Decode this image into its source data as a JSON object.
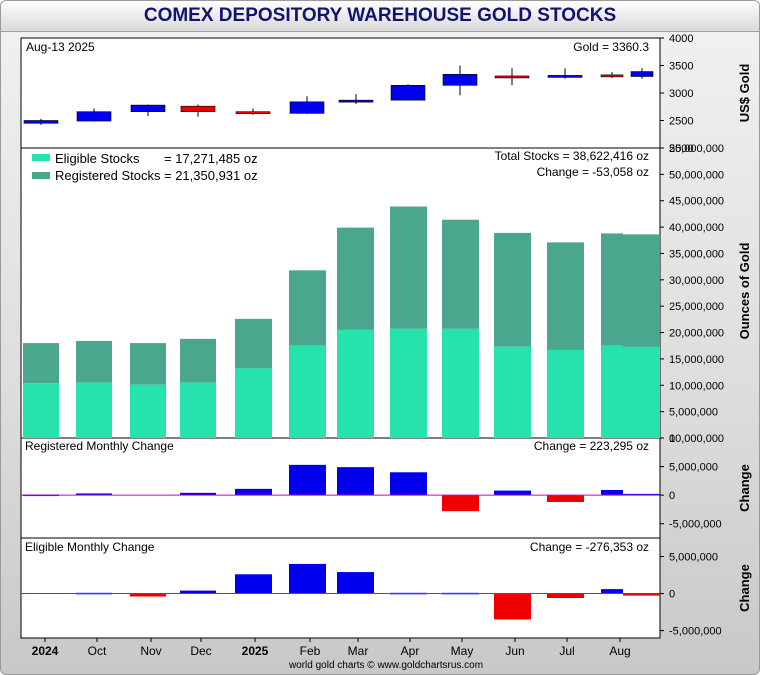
{
  "title": "COMEX DEPOSITORY WAREHOUSE GOLD STOCKS",
  "footer": "world gold charts © www.goldchartsrus.com",
  "x_axis_labels": [
    "2024",
    "Oct",
    "Nov",
    "Dec",
    "2025",
    "Feb",
    "Mar",
    "Apr",
    "May",
    "Jun",
    "Jul",
    "Aug"
  ],
  "chart_data": [
    {
      "type": "candlestick",
      "name": "gold-price",
      "date_label": "Aug-13  2025",
      "value_label": "Gold = 3360.3",
      "ylabel": "US$ Gold",
      "ylim": [
        2000,
        4000
      ],
      "y_ticks": [
        "4000",
        "3500",
        "3000",
        "2500",
        "2000"
      ],
      "candles": [
        {
          "month": "Sep 2024",
          "open": 2450,
          "high": 2530,
          "low": 2420,
          "close": 2500,
          "color": "#0000ee"
        },
        {
          "month": "Oct 2024",
          "open": 2490,
          "high": 2720,
          "low": 2480,
          "close": 2660,
          "color": "#0000ee"
        },
        {
          "month": "Nov 2024",
          "open": 2660,
          "high": 2790,
          "low": 2580,
          "close": 2780,
          "color": "#0000ee"
        },
        {
          "month": "Dec 2024",
          "open": 2760,
          "high": 2790,
          "low": 2570,
          "close": 2660,
          "color": "#ee0000"
        },
        {
          "month": "Jan 2025",
          "open": 2660,
          "high": 2720,
          "low": 2600,
          "close": 2630,
          "color": "#ee0000"
        },
        {
          "month": "Feb 2025",
          "open": 2630,
          "high": 2940,
          "low": 2620,
          "close": 2840,
          "color": "#0000ee"
        },
        {
          "month": "Mar 2025",
          "open": 2840,
          "high": 2980,
          "low": 2800,
          "close": 2870,
          "color": "#0000ee"
        },
        {
          "month": "Apr 2025",
          "open": 2870,
          "high": 3160,
          "low": 2870,
          "close": 3140,
          "color": "#0000ee"
        },
        {
          "month": "May 2025",
          "open": 3140,
          "high": 3500,
          "low": 2960,
          "close": 3340,
          "color": "#0000ee"
        },
        {
          "month": "Jun 2025",
          "open": 3310,
          "high": 3450,
          "low": 3140,
          "close": 3300,
          "color": "#ee0000"
        },
        {
          "month": "Jul 2025",
          "open": 3300,
          "high": 3450,
          "low": 3260,
          "close": 3320,
          "color": "#0000ee"
        },
        {
          "month": "Aug 2025 a",
          "open": 3330,
          "high": 3380,
          "low": 3270,
          "close": 3300,
          "color": "#ee0000"
        },
        {
          "month": "Aug 2025 b",
          "open": 3300,
          "high": 3450,
          "low": 3260,
          "close": 3390,
          "color": "#0000ee"
        }
      ]
    },
    {
      "type": "bar",
      "name": "depository-stocks",
      "stacked": true,
      "ylabel": "Ounces of Gold",
      "ylim": [
        0,
        55000000
      ],
      "y_ticks": [
        "55,000,000",
        "50,000,000",
        "45,000,000",
        "40,000,000",
        "35,000,000",
        "30,000,000",
        "25,000,000",
        "20,000,000",
        "15,000,000",
        "10,000,000",
        "5,000,000",
        "0"
      ],
      "legend": [
        {
          "label": "Eligible Stocks",
          "value": "= 17,271,485 oz",
          "color": "#26e2ac"
        },
        {
          "label": "Registered Stocks",
          "value": "= 21,350,931 oz",
          "color": "#4aa78d"
        }
      ],
      "total_label": "Total Stocks = 38,622,416 oz",
      "change_label": "Change = -53,058 oz",
      "categories": [
        "Sep 2024",
        "Oct 2024",
        "Nov 2024",
        "Dec 2024",
        "Jan 2025",
        "Feb 2025",
        "Mar 2025",
        "Apr 2025",
        "May 2025",
        "Jun 2025",
        "Jul 2025",
        "Aug 2025 a",
        "Aug 2025 b"
      ],
      "series": [
        {
          "name": "Eligible Stocks",
          "values": [
            10400000,
            10500000,
            10100000,
            10500000,
            13200000,
            17500000,
            20500000,
            20700000,
            20700000,
            17300000,
            16700000,
            17500000,
            17271485
          ]
        },
        {
          "name": "Registered Stocks",
          "values": [
            7600000,
            7900000,
            7900000,
            8300000,
            9400000,
            14300000,
            19400000,
            23200000,
            20700000,
            21600000,
            20400000,
            21300000,
            21350931
          ]
        }
      ]
    },
    {
      "type": "bar",
      "name": "registered-monthly-change",
      "title": "Registered Monthly Change",
      "change_label": "Change = 223,295 oz",
      "ylabel": "Change",
      "ylim": [
        -7500000,
        10000000
      ],
      "y_ticks": [
        "10,000,000",
        "5,000,000",
        "0",
        "-5,000,000"
      ],
      "categories": [
        "Sep 2024",
        "Oct 2024",
        "Nov 2024",
        "Dec 2024",
        "Jan 2025",
        "Feb 2025",
        "Mar 2025",
        "Apr 2025",
        "May 2025",
        "Jun 2025",
        "Jul 2025",
        "Aug 2025 a",
        "Aug 2025 b"
      ],
      "values": [
        100000,
        300000,
        0,
        400000,
        1100000,
        5300000,
        4900000,
        4000000,
        -2800000,
        800000,
        -1200000,
        900000,
        223295
      ]
    },
    {
      "type": "bar",
      "name": "eligible-monthly-change",
      "title": "Eligible Monthly Change",
      "change_label": "Change = -276,353 oz",
      "ylabel": "Change",
      "ylim": [
        -6000000,
        7500000
      ],
      "y_ticks": [
        "5,000,000",
        "0",
        "-5,000,000"
      ],
      "categories": [
        "Sep 2024",
        "Oct 2024",
        "Nov 2024",
        "Dec 2024",
        "Jan 2025",
        "Feb 2025",
        "Mar 2025",
        "Apr 2025",
        "May 2025",
        "Jun 2025",
        "Jul 2025",
        "Aug 2025 a",
        "Aug 2025 b"
      ],
      "values": [
        0,
        100000,
        -400000,
        400000,
        2600000,
        4000000,
        2900000,
        100000,
        100000,
        -3500000,
        -600000,
        600000,
        -276353
      ]
    }
  ]
}
